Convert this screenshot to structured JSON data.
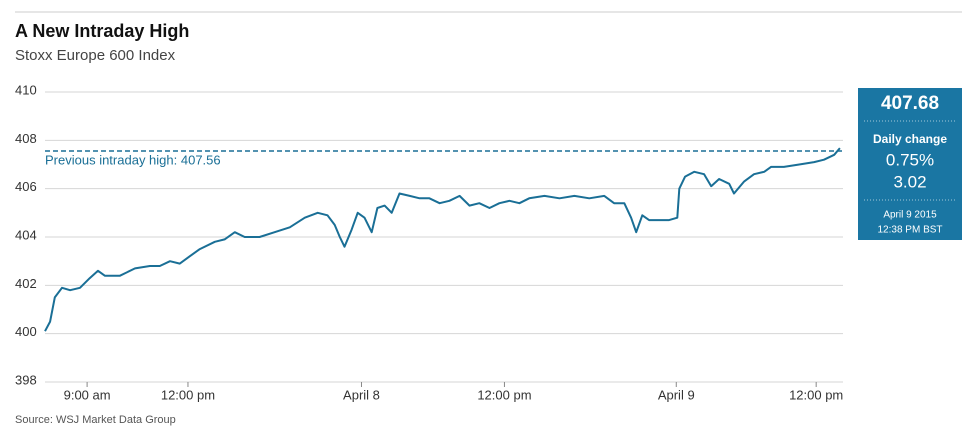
{
  "chart_data": {
    "type": "line",
    "title": "A New Intraday High",
    "subtitle": "Stoxx Europe 600 Index",
    "source": "Source: WSJ Market Data Group",
    "x": [
      0,
      0.15,
      0.29,
      0.5,
      0.74,
      1.03,
      1.32,
      1.56,
      1.76,
      2.21,
      2.65,
      3.09,
      3.38,
      3.68,
      3.97,
      4.26,
      4.56,
      5,
      5.29,
      5.59,
      5.88,
      6.32,
      6.76,
      7.21,
      7.65,
      8.03,
      8.32,
      8.53,
      8.68,
      8.82,
      9.03,
      9.21,
      9.41,
      9.62,
      9.79,
      10,
      10.21,
      10.44,
      10.74,
      11.03,
      11.32,
      11.62,
      11.91,
      12.21,
      12.5,
      12.79,
      13.09,
      13.38,
      13.68,
      13.97,
      14.26,
      14.71,
      15.15,
      15.59,
      16.03,
      16.47,
      16.76,
      17.06,
      17.26,
      17.41,
      17.59,
      17.79,
      18.09,
      18.38,
      18.62,
      18.68,
      18.85,
      19.12,
      19.41,
      19.62,
      19.85,
      20.15,
      20.29,
      20.59,
      20.88,
      21.18,
      21.38,
      21.76,
      22.21,
      22.65,
      22.94,
      23.24,
      23.41
    ],
    "series": [
      {
        "name": "Stoxx Europe 600",
        "color": "#1a6f96",
        "values": [
          400.1,
          400.5,
          401.5,
          401.9,
          401.8,
          401.9,
          402.3,
          402.6,
          402.4,
          402.4,
          402.7,
          402.8,
          402.8,
          403.0,
          402.9,
          403.2,
          403.5,
          403.8,
          403.9,
          404.2,
          404.0,
          404.0,
          404.2,
          404.4,
          404.8,
          405.0,
          404.9,
          404.5,
          404.0,
          403.6,
          404.3,
          405.0,
          404.8,
          404.2,
          405.2,
          405.3,
          405.0,
          405.8,
          405.7,
          405.6,
          405.6,
          405.4,
          405.5,
          405.7,
          405.3,
          405.4,
          405.2,
          405.4,
          405.5,
          405.4,
          405.6,
          405.7,
          405.6,
          405.7,
          405.6,
          405.7,
          405.4,
          405.4,
          404.8,
          404.2,
          404.9,
          404.7,
          404.7,
          404.7,
          404.8,
          406.0,
          406.5,
          406.7,
          406.6,
          406.1,
          406.4,
          406.2,
          405.8,
          406.3,
          406.6,
          406.7,
          406.9,
          406.9,
          407.0,
          407.1,
          407.2,
          407.4,
          407.68
        ]
      }
    ],
    "xlim": [
      0,
      23.5
    ],
    "xticks": [
      {
        "value": 1.24,
        "label": "9:00 am"
      },
      {
        "value": 4.21,
        "label": "12:00 pm"
      },
      {
        "value": 9.32,
        "label": "April 8"
      },
      {
        "value": 13.53,
        "label": "12:00 pm"
      },
      {
        "value": 18.59,
        "label": "April 9"
      },
      {
        "value": 22.71,
        "label": "12:00 pm"
      }
    ],
    "ylim": [
      398,
      410
    ],
    "yticks": [
      398,
      400,
      402,
      404,
      406,
      408,
      410
    ],
    "grid": true,
    "reference_line": {
      "value": 407.56,
      "label": "Previous intraday high: 407.56",
      "color": "#1a6f96"
    },
    "panel": {
      "value": "407.68",
      "change_label": "Daily change",
      "change_pct": "0.75%",
      "change": "3.02",
      "date": "April 9 2015",
      "time": "12:38 PM BST",
      "color": "#1a76a3"
    }
  }
}
